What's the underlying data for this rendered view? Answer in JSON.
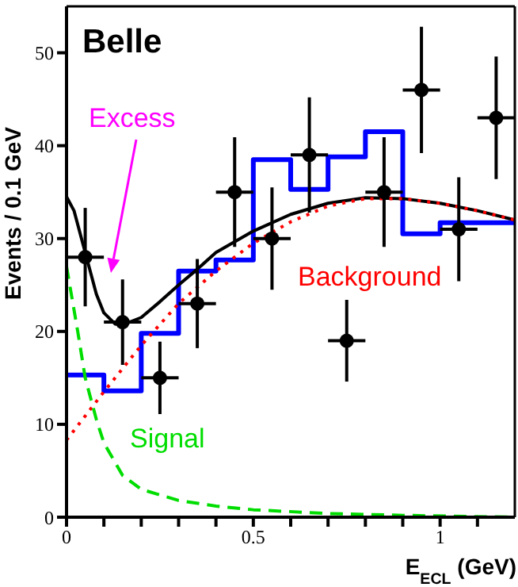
{
  "chart_data": {
    "type": "line",
    "title": "Belle",
    "xlabel": "E$_{ECL}$ (GeV)",
    "ylabel": "Events / 0.1 GeV",
    "xlim": [
      0,
      1.2
    ],
    "ylim": [
      0,
      55
    ],
    "xticks": [
      0,
      {
        "value": 0.1,
        "label": null
      },
      {
        "value": 0.2,
        "label": null
      },
      {
        "value": 0.3,
        "label": null
      },
      {
        "value": 0.4,
        "label": null
      },
      0.5,
      {
        "value": 0.6,
        "label": null
      },
      {
        "value": 0.7,
        "label": null
      },
      {
        "value": 0.8,
        "label": null
      },
      {
        "value": 0.9,
        "label": null
      },
      1,
      {
        "value": 1.1,
        "label": null
      }
    ],
    "yticks": [
      0,
      10,
      20,
      30,
      40,
      50
    ],
    "grid": false,
    "legend": false,
    "annotations": [
      "Excess"
    ],
    "series": [
      {
        "type": "step",
        "color": "#0000ff",
        "x": [
          0,
          0.1,
          0.2,
          0.3,
          0.4,
          0.5,
          0.6,
          0.7,
          0.8,
          0.9,
          1.0,
          1.1,
          1.2
        ],
        "values": [
          15.3,
          13.6,
          19.8,
          26.5,
          27.7,
          38.5,
          35.3,
          38.8,
          41.5,
          30.5,
          31.7,
          31.7,
          31.7
        ]
      },
      {
        "color": "#000000",
        "line_style": "solid",
        "x": [
          0,
          0.02,
          0.05,
          0.08,
          0.1,
          0.13,
          0.15,
          0.2,
          0.25,
          0.3,
          0.35,
          0.4,
          0.5,
          0.6,
          0.7,
          0.8,
          0.9,
          1.0,
          1.1,
          1.2
        ],
        "values": [
          34.5,
          33,
          28.5,
          24,
          22,
          20.8,
          20.7,
          21.5,
          23.2,
          25,
          26.7,
          28.5,
          30.8,
          32.6,
          33.8,
          34.4,
          34.3,
          33.8,
          33,
          32
        ]
      },
      {
        "name": "Background",
        "color": "#ff0000",
        "line_style": "dotted",
        "x": [
          0,
          0.1,
          0.2,
          0.3,
          0.4,
          0.5,
          0.6,
          0.7,
          0.8,
          0.9,
          1.0,
          1.1,
          1.2
        ],
        "values": [
          8.3,
          13.5,
          18.5,
          23,
          26.5,
          29.5,
          31.8,
          33.5,
          34.3,
          34.3,
          33.8,
          33,
          32
        ]
      },
      {
        "name": "Signal",
        "color": "#00dd00",
        "line_style": "dashed",
        "x": [
          0,
          0.03,
          0.05,
          0.08,
          0.1,
          0.15,
          0.2,
          0.3,
          0.4,
          0.5,
          0.7,
          0.9,
          1.2
        ],
        "values": [
          27,
          20,
          15,
          10.5,
          8,
          4.5,
          3,
          1.8,
          1.2,
          0.8,
          0.4,
          0.2,
          0
        ]
      },
      {
        "type": "scatter",
        "color": "#000000",
        "marker": "circle",
        "x": [
          0.05,
          0.15,
          0.25,
          0.35,
          0.45,
          0.55,
          0.65,
          0.75,
          0.85,
          0.95,
          1.05,
          1.15
        ],
        "values": [
          28,
          21,
          15,
          23,
          35,
          30,
          39,
          19,
          35,
          46,
          31,
          43
        ],
        "errors": [
          5.3,
          4.6,
          3.9,
          4.8,
          5.9,
          5.5,
          6.2,
          4.4,
          5.9,
          6.8,
          5.6,
          6.6
        ],
        "xerrors": [
          0.05,
          0.05,
          0.05,
          0.05,
          0.05,
          0.05,
          0.05,
          0.05,
          0.05,
          0.05,
          0.05,
          0.05
        ]
      }
    ]
  }
}
